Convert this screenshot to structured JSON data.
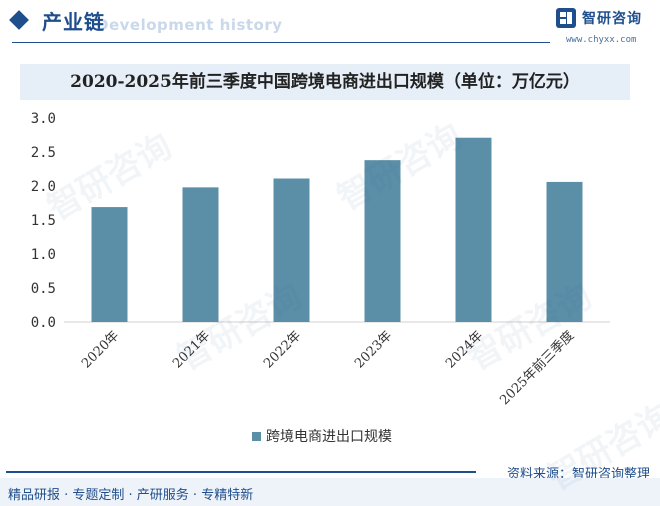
{
  "header": {
    "section_title": "产业链",
    "ghost_text": "Development history",
    "brand_name": "智研咨询",
    "brand_url": "www.chyxx.com"
  },
  "chart_data": {
    "type": "bar",
    "title": "2020-2025年前三季度中国跨境电商进出口规模（单位：万亿元）",
    "categories": [
      "2020年",
      "2021年",
      "2022年",
      "2023年",
      "2024年",
      "2025年前三季度"
    ],
    "series": [
      {
        "name": "跨境电商进出口规模",
        "values": [
          1.69,
          1.98,
          2.11,
          2.38,
          2.71,
          2.06
        ]
      }
    ],
    "ylim": [
      0,
      3.0
    ],
    "yticks": [
      "0.0",
      "0.5",
      "1.0",
      "1.5",
      "2.0",
      "2.5",
      "3.0"
    ],
    "xlabel": "",
    "ylabel": "",
    "grid": false,
    "legend": "bottom-center",
    "bar_color": "#5b8fa8"
  },
  "footer": {
    "source": "资料来源：智研咨询整理",
    "tagline": "精品研报 · 专题定制 · 产研服务 · 专精特新"
  },
  "watermark": "智研咨询"
}
